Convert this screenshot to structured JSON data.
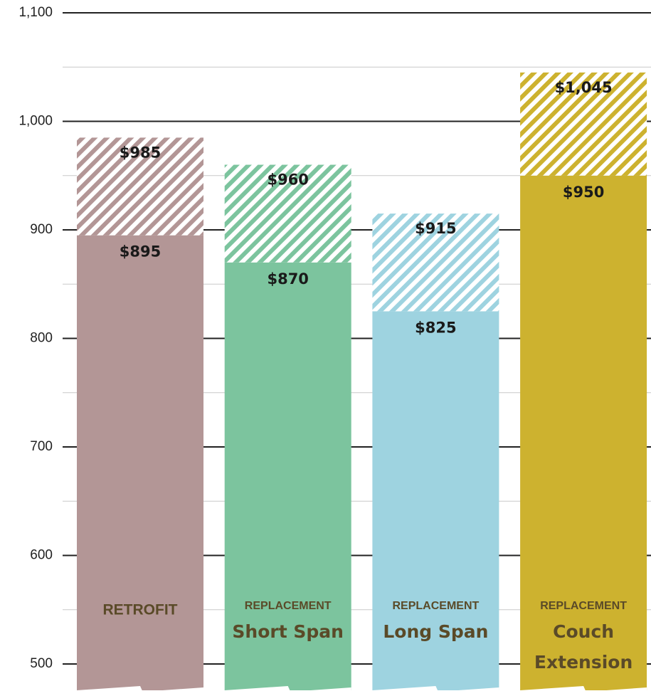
{
  "chart_data": {
    "type": "range_bar",
    "categories": [
      "RETROFIT",
      "REPLACEMENT",
      "REPLACEMENT",
      "REPLACEMENT"
    ],
    "category_sublabels": [
      null,
      [
        "Short Span"
      ],
      [
        "Long Span"
      ],
      [
        "Couch",
        "Extension"
      ]
    ],
    "low_values": [
      895,
      870,
      825,
      950
    ],
    "low_value_labels": [
      "$895",
      "$870",
      "$825",
      "$950"
    ],
    "high_values": [
      985,
      960,
      915,
      1045
    ],
    "high_value_labels": [
      "$985",
      "$960",
      "$915",
      "$1,045"
    ],
    "colors": [
      "#b39696",
      "#7cc49e",
      "#9ed3e0",
      "#cdb22f"
    ],
    "ylim": [
      470,
      1100
    ],
    "yticks": [
      500,
      600,
      700,
      800,
      900,
      {
        "value": 1000,
        "label": "1,000"
      },
      {
        "value": 1100,
        "label": "1,100"
      }
    ],
    "minor_yticks": [
      550,
      650,
      750,
      850,
      950,
      1050
    ],
    "grid": true
  }
}
